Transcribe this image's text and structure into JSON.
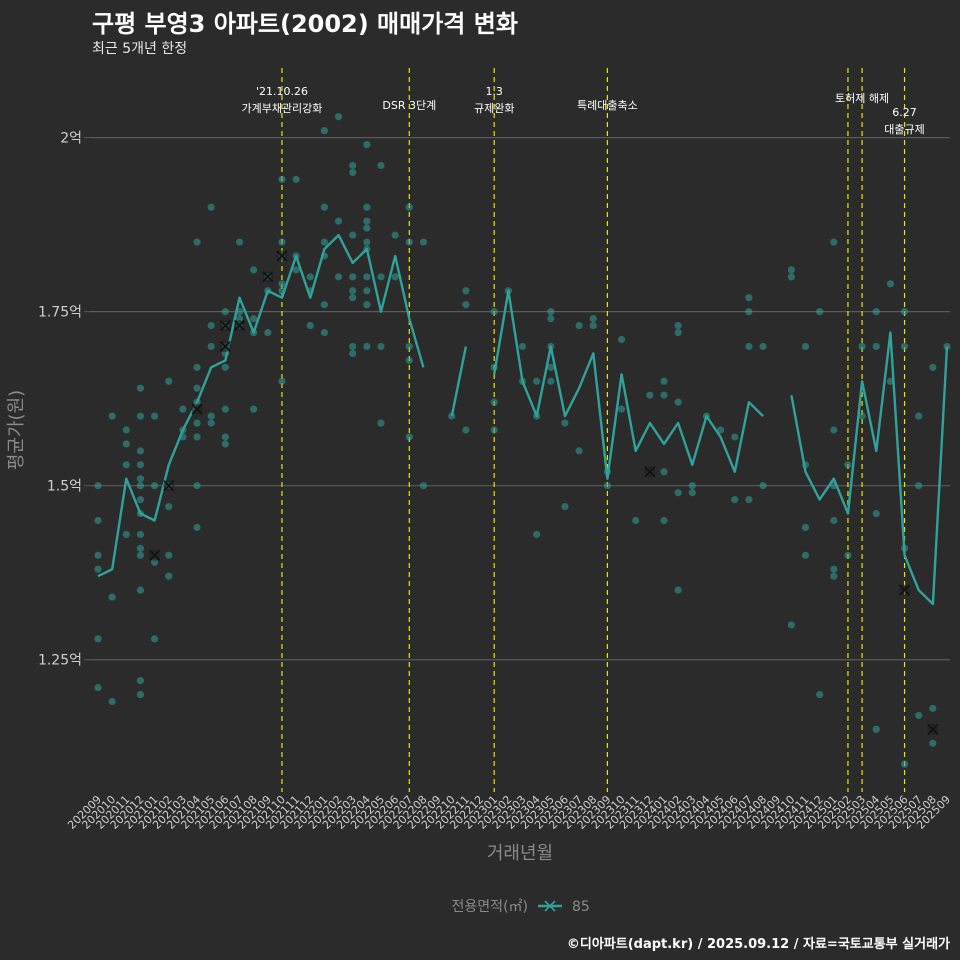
{
  "title": "구평 부영3 아파트(2002) 매매가격 변화",
  "subtitle": "최근 5개년 한정",
  "caption": "©디아파트(dapt.kr) / 2025.09.12 / 자료=국토교통부 실거래가",
  "colors": {
    "background": "#2b2b2b",
    "series": "#2fa39b",
    "events": "#e8e800",
    "grid": "#5a5a5a",
    "axis_text": "#cfcfcf"
  },
  "chart_data": {
    "type": "line",
    "xlabel": "거래년월",
    "ylabel": "평균가(원)",
    "ylim": [
      1.06,
      2.1
    ],
    "yticks": [
      {
        "v": 1.25,
        "label": "1.25억"
      },
      {
        "v": 1.5,
        "label": "1.5억"
      },
      {
        "v": 1.75,
        "label": "1.75억"
      },
      {
        "v": 2.0,
        "label": "2억"
      }
    ],
    "x": [
      "202009",
      "202010",
      "202011",
      "202012",
      "202101",
      "202102",
      "202103",
      "202104",
      "202105",
      "202106",
      "202107",
      "202108",
      "202109",
      "202110",
      "202111",
      "202112",
      "202201",
      "202202",
      "202203",
      "202204",
      "202205",
      "202206",
      "202207",
      "202208",
      "202209",
      "202210",
      "202211",
      "202212",
      "202301",
      "202302",
      "202303",
      "202304",
      "202305",
      "202306",
      "202307",
      "202308",
      "202309",
      "202310",
      "202311",
      "202312",
      "202401",
      "202402",
      "202403",
      "202404",
      "202405",
      "202406",
      "202407",
      "202408",
      "202409",
      "202410",
      "202411",
      "202412",
      "202501",
      "202502",
      "202503",
      "202504",
      "202505",
      "202506",
      "202507",
      "202508",
      "202509"
    ],
    "legend": {
      "title": "전용면적(㎡)",
      "label": "85",
      "position": "bottom"
    },
    "series": [
      {
        "name": "85",
        "values": [
          1.37,
          1.38,
          1.51,
          1.46,
          1.45,
          1.53,
          1.58,
          1.62,
          1.67,
          1.68,
          1.77,
          1.72,
          1.78,
          1.77,
          1.83,
          1.77,
          1.84,
          1.86,
          1.82,
          1.84,
          1.75,
          1.83,
          1.74,
          1.67,
          null,
          1.6,
          1.7,
          null,
          1.66,
          1.78,
          1.65,
          1.6,
          1.7,
          1.6,
          1.64,
          1.69,
          1.51,
          1.66,
          1.55,
          1.59,
          1.56,
          1.59,
          1.53,
          1.6,
          1.57,
          1.52,
          1.62,
          1.6,
          null,
          1.63,
          1.52,
          1.48,
          1.51,
          1.46,
          1.65,
          1.55,
          1.72,
          1.4,
          1.35,
          1.33,
          1.7
        ]
      }
    ],
    "scatter": [
      [
        0,
        1.5
      ],
      [
        0,
        1.45
      ],
      [
        0,
        1.4
      ],
      [
        0,
        1.38
      ],
      [
        0,
        1.28
      ],
      [
        0,
        1.21
      ],
      [
        1,
        1.6
      ],
      [
        1,
        1.34
      ],
      [
        1,
        1.19
      ],
      [
        2,
        1.58
      ],
      [
        2,
        1.56
      ],
      [
        2,
        1.53
      ],
      [
        2,
        1.43
      ],
      [
        3,
        1.64
      ],
      [
        3,
        1.6
      ],
      [
        3,
        1.55
      ],
      [
        3,
        1.53
      ],
      [
        3,
        1.51
      ],
      [
        3,
        1.5
      ],
      [
        3,
        1.48
      ],
      [
        3,
        1.46
      ],
      [
        3,
        1.43
      ],
      [
        3,
        1.41
      ],
      [
        3,
        1.4
      ],
      [
        3,
        1.35
      ],
      [
        3,
        1.22
      ],
      [
        3,
        1.2
      ],
      [
        4,
        1.6
      ],
      [
        4,
        1.5
      ],
      [
        4,
        1.39
      ],
      [
        4,
        1.28
      ],
      [
        5,
        1.65
      ],
      [
        5,
        1.5
      ],
      [
        5,
        1.47
      ],
      [
        5,
        1.4
      ],
      [
        5,
        1.37
      ],
      [
        6,
        1.61
      ],
      [
        6,
        1.58
      ],
      [
        6,
        1.57
      ],
      [
        7,
        1.85
      ],
      [
        7,
        1.67
      ],
      [
        7,
        1.64
      ],
      [
        7,
        1.62
      ],
      [
        7,
        1.59
      ],
      [
        7,
        1.57
      ],
      [
        7,
        1.5
      ],
      [
        7,
        1.44
      ],
      [
        8,
        1.9
      ],
      [
        8,
        1.73
      ],
      [
        8,
        1.7
      ],
      [
        8,
        1.6
      ],
      [
        8,
        1.59
      ],
      [
        9,
        1.75
      ],
      [
        9,
        1.73
      ],
      [
        9,
        1.7
      ],
      [
        9,
        1.69
      ],
      [
        9,
        1.67
      ],
      [
        9,
        1.61
      ],
      [
        9,
        1.57
      ],
      [
        9,
        1.56
      ],
      [
        10,
        1.85
      ],
      [
        10,
        1.75
      ],
      [
        10,
        1.74
      ],
      [
        10,
        1.73
      ],
      [
        11,
        1.81
      ],
      [
        11,
        1.74
      ],
      [
        11,
        1.72
      ],
      [
        11,
        1.61
      ],
      [
        12,
        1.8
      ],
      [
        12,
        1.78
      ],
      [
        12,
        1.72
      ],
      [
        13,
        1.94
      ],
      [
        13,
        1.85
      ],
      [
        13,
        1.83
      ],
      [
        13,
        1.79
      ],
      [
        13,
        1.78
      ],
      [
        13,
        1.65
      ],
      [
        14,
        1.94
      ],
      [
        14,
        1.83
      ],
      [
        14,
        1.81
      ],
      [
        15,
        1.8
      ],
      [
        15,
        1.78
      ],
      [
        15,
        1.73
      ],
      [
        16,
        2.01
      ],
      [
        16,
        1.9
      ],
      [
        16,
        1.85
      ],
      [
        16,
        1.83
      ],
      [
        16,
        1.76
      ],
      [
        16,
        1.72
      ],
      [
        17,
        2.03
      ],
      [
        17,
        1.88
      ],
      [
        17,
        1.8
      ],
      [
        18,
        1.96
      ],
      [
        18,
        1.95
      ],
      [
        18,
        1.86
      ],
      [
        18,
        1.8
      ],
      [
        18,
        1.78
      ],
      [
        18,
        1.77
      ],
      [
        18,
        1.7
      ],
      [
        18,
        1.69
      ],
      [
        19,
        1.99
      ],
      [
        19,
        1.9
      ],
      [
        19,
        1.88
      ],
      [
        19,
        1.87
      ],
      [
        19,
        1.85
      ],
      [
        19,
        1.84
      ],
      [
        19,
        1.8
      ],
      [
        19,
        1.78
      ],
      [
        19,
        1.76
      ],
      [
        19,
        1.7
      ],
      [
        20,
        1.96
      ],
      [
        20,
        1.8
      ],
      [
        20,
        1.7
      ],
      [
        20,
        1.59
      ],
      [
        21,
        1.86
      ],
      [
        21,
        1.8
      ],
      [
        22,
        1.9
      ],
      [
        22,
        1.85
      ],
      [
        22,
        1.7
      ],
      [
        22,
        1.68
      ],
      [
        22,
        1.57
      ],
      [
        23,
        1.85
      ],
      [
        23,
        1.5
      ],
      [
        25,
        1.6
      ],
      [
        26,
        1.78
      ],
      [
        26,
        1.76
      ],
      [
        26,
        1.58
      ],
      [
        28,
        1.75
      ],
      [
        28,
        1.67
      ],
      [
        28,
        1.62
      ],
      [
        28,
        1.58
      ],
      [
        29,
        1.78
      ],
      [
        30,
        1.7
      ],
      [
        30,
        1.65
      ],
      [
        31,
        1.6
      ],
      [
        31,
        1.65
      ],
      [
        31,
        1.43
      ],
      [
        32,
        1.75
      ],
      [
        32,
        1.74
      ],
      [
        32,
        1.7
      ],
      [
        32,
        1.67
      ],
      [
        32,
        1.65
      ],
      [
        33,
        1.59
      ],
      [
        33,
        1.47
      ],
      [
        34,
        1.73
      ],
      [
        34,
        1.55
      ],
      [
        35,
        1.74
      ],
      [
        35,
        1.73
      ],
      [
        36,
        1.52
      ],
      [
        36,
        1.5
      ],
      [
        37,
        1.71
      ],
      [
        37,
        1.61
      ],
      [
        38,
        1.45
      ],
      [
        39,
        1.63
      ],
      [
        40,
        1.65
      ],
      [
        40,
        1.63
      ],
      [
        40,
        1.52
      ],
      [
        40,
        1.45
      ],
      [
        41,
        1.73
      ],
      [
        41,
        1.72
      ],
      [
        41,
        1.62
      ],
      [
        41,
        1.49
      ],
      [
        41,
        1.35
      ],
      [
        42,
        1.5
      ],
      [
        42,
        1.49
      ],
      [
        43,
        1.6
      ],
      [
        44,
        1.58
      ],
      [
        45,
        1.57
      ],
      [
        45,
        1.48
      ],
      [
        46,
        1.77
      ],
      [
        46,
        1.75
      ],
      [
        46,
        1.7
      ],
      [
        46,
        1.48
      ],
      [
        47,
        1.7
      ],
      [
        47,
        1.5
      ],
      [
        49,
        1.81
      ],
      [
        49,
        1.8
      ],
      [
        49,
        1.3
      ],
      [
        50,
        1.7
      ],
      [
        50,
        1.53
      ],
      [
        50,
        1.44
      ],
      [
        50,
        1.4
      ],
      [
        51,
        1.75
      ],
      [
        51,
        1.2
      ],
      [
        52,
        1.85
      ],
      [
        52,
        1.58
      ],
      [
        52,
        1.5
      ],
      [
        52,
        1.45
      ],
      [
        52,
        1.38
      ],
      [
        52,
        1.37
      ],
      [
        53,
        1.53
      ],
      [
        53,
        1.4
      ],
      [
        54,
        1.7
      ],
      [
        54,
        1.6
      ],
      [
        55,
        1.75
      ],
      [
        55,
        1.7
      ],
      [
        55,
        1.46
      ],
      [
        55,
        1.15
      ],
      [
        56,
        1.79
      ],
      [
        56,
        1.65
      ],
      [
        57,
        1.75
      ],
      [
        57,
        1.7
      ],
      [
        57,
        1.41
      ],
      [
        57,
        1.1
      ],
      [
        58,
        1.6
      ],
      [
        58,
        1.5
      ],
      [
        58,
        1.17
      ],
      [
        59,
        1.67
      ],
      [
        59,
        1.18
      ],
      [
        59,
        1.13
      ],
      [
        60,
        1.7
      ]
    ],
    "crosses": [
      [
        5,
        1.5
      ],
      [
        4,
        1.4
      ],
      [
        7,
        1.61
      ],
      [
        9,
        1.73
      ],
      [
        9,
        1.7
      ],
      [
        10,
        1.73
      ],
      [
        12,
        1.8
      ],
      [
        13,
        1.83
      ],
      [
        39,
        1.52
      ],
      [
        57,
        1.35
      ],
      [
        59,
        1.15
      ]
    ],
    "events": [
      {
        "i": 13,
        "lines": [
          "'21.10.26",
          "가계부채관리강화"
        ],
        "row": 0
      },
      {
        "i": 22,
        "lines": [
          "DSR 3단계"
        ],
        "row": 2
      },
      {
        "i": 28,
        "lines": [
          "1.3",
          "규제완화"
        ],
        "row": 0
      },
      {
        "i": 36,
        "lines": [
          "특례대출축소"
        ],
        "row": 2
      },
      {
        "i": 53,
        "lines": [],
        "row": 0
      },
      {
        "i": 54,
        "lines": [
          "토허제 해제"
        ],
        "row": 1
      },
      {
        "i": 57,
        "lines": [
          "6.27",
          "대출규제"
        ],
        "row": 3
      }
    ]
  }
}
